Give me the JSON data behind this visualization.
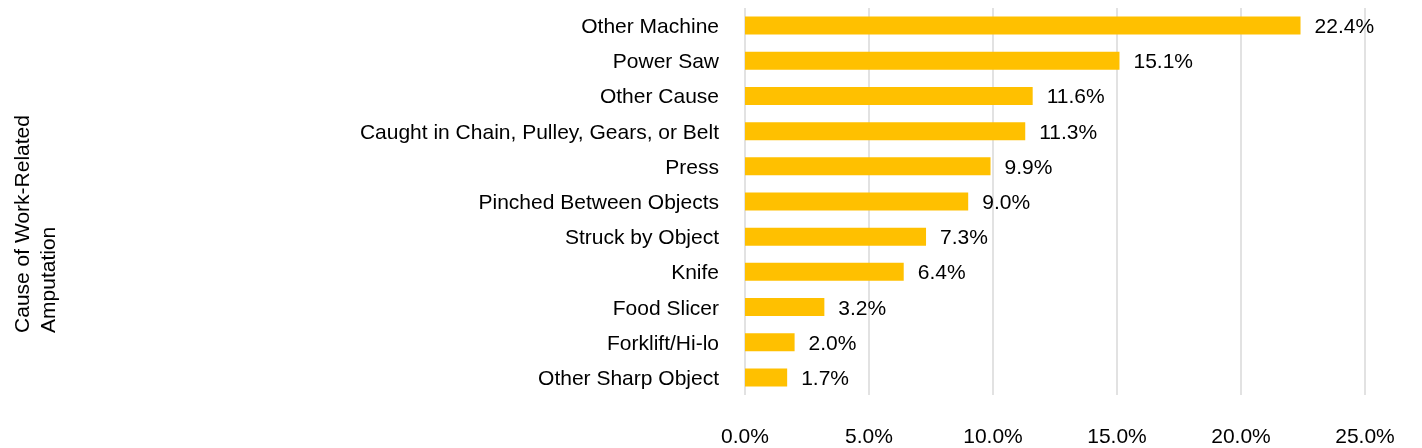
{
  "chart_data": {
    "type": "bar",
    "orientation": "horizontal",
    "annotations": [
      "Cause of Work-Related\nAmputation"
    ],
    "categories": [
      "Other Machine",
      "Power Saw",
      "Other Cause",
      "Caught in Chain, Pulley, Gears, or Belt",
      "Press",
      "Pinched Between Objects",
      "Struck by Object",
      "Knife",
      "Food Slicer",
      "Forklift/Hi-lo",
      "Other Sharp Object"
    ],
    "values": [
      22.4,
      15.1,
      11.6,
      11.3,
      9.9,
      9.0,
      7.3,
      6.4,
      3.2,
      2.0,
      1.7
    ],
    "value_labels": [
      "22.4%",
      "15.1%",
      "11.6%",
      "11.3%",
      "9.9%",
      "9.0%",
      "7.3%",
      "6.4%",
      "3.2%",
      "2.0%",
      "1.7%"
    ],
    "color": "#ffc000",
    "xlim": [
      0,
      25
    ],
    "xticks": [
      {
        "value": 0,
        "label": "0.0%"
      },
      {
        "value": 5,
        "label": "5.0%"
      },
      {
        "value": 10,
        "label": "10.0%"
      },
      {
        "value": 15,
        "label": "15.0%"
      },
      {
        "value": 20,
        "label": "20.0%"
      },
      {
        "value": 25,
        "label": "25.0%"
      }
    ],
    "grid": "x"
  }
}
